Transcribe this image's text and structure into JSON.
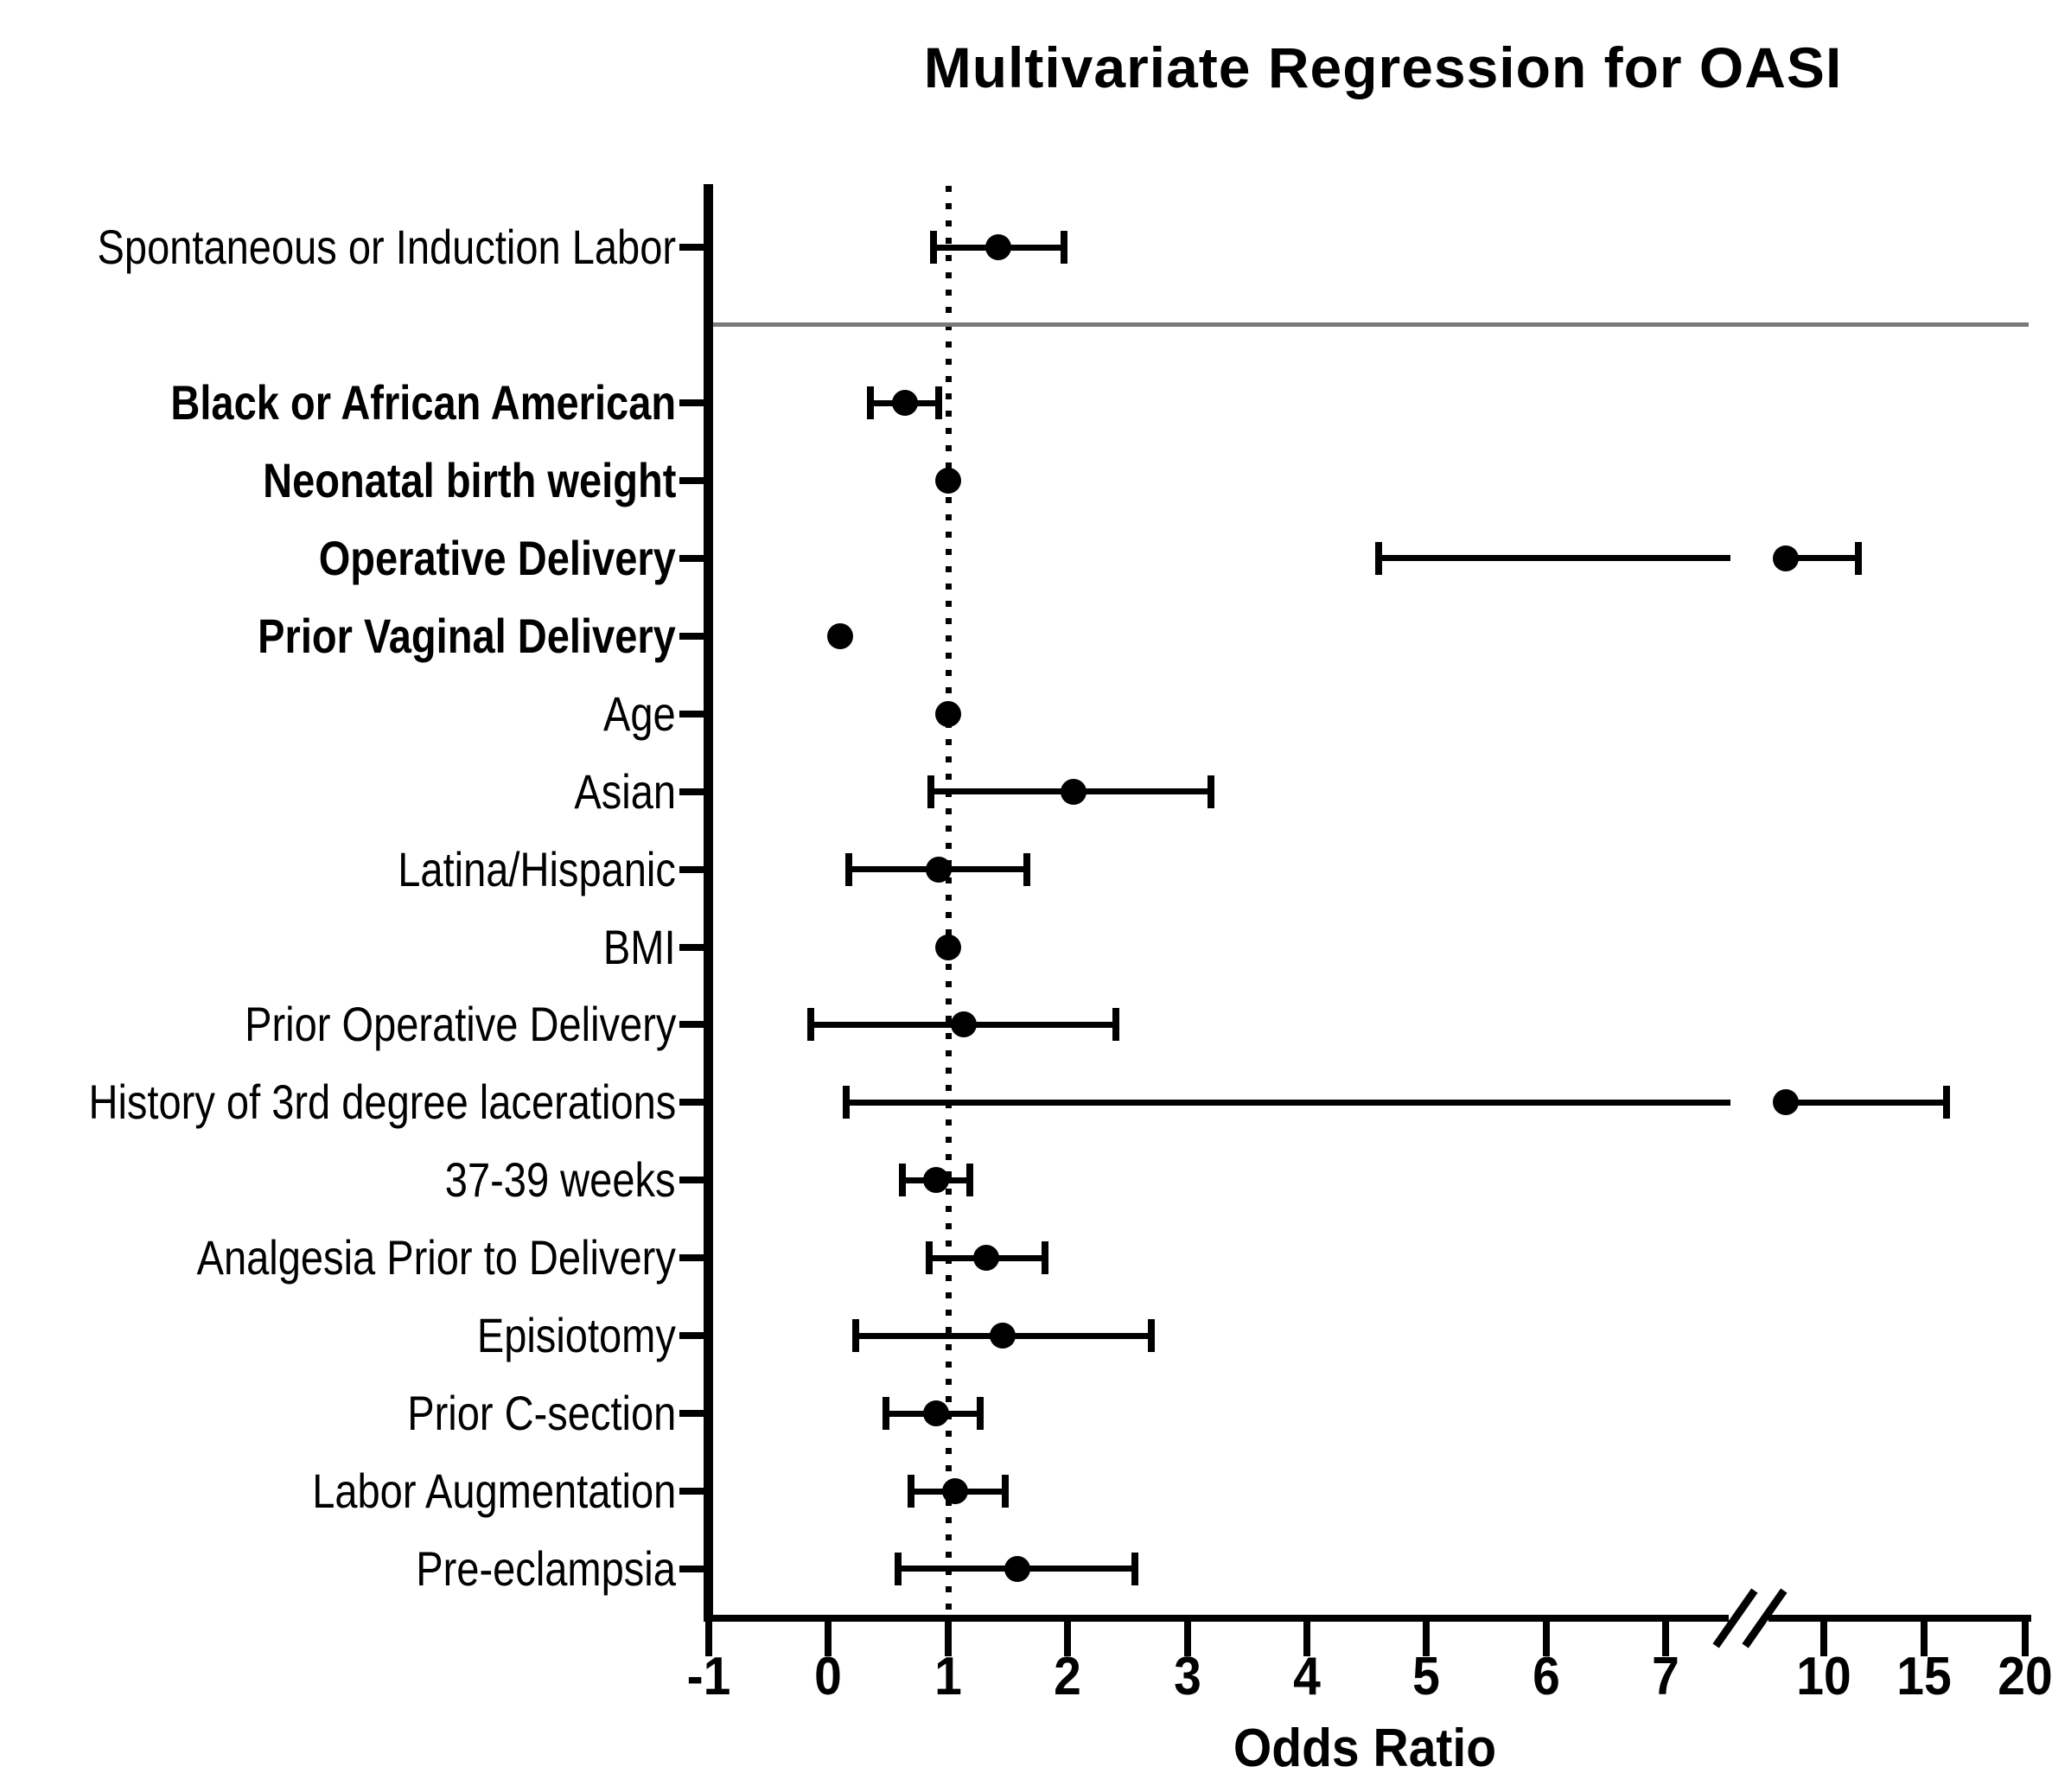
{
  "chart_data": {
    "type": "scatter",
    "variant": "forest-plot-odds-ratios",
    "title": "Multivariate Regression for OASI",
    "xlabel": "Odds Ratio",
    "x_axis": {
      "range": [
        -1,
        20
      ],
      "ticks_before_break": [
        -1,
        0,
        1,
        2,
        3,
        4,
        5,
        6,
        7
      ],
      "ticks_after_break": [
        10,
        15,
        20
      ],
      "axis_break_between": [
        7,
        10
      ],
      "reference_line_x": 1,
      "reference_line_style": "dotted"
    },
    "legend": null,
    "grid": false,
    "colors": {
      "marker": "#000000",
      "error_bar": "#000000",
      "separator_line": "#7a7a7a",
      "background": "#ffffff"
    },
    "rows": [
      {
        "label": "Spontaneous or Induction Labor",
        "bold": false,
        "or": 1.42,
        "ci_low": 0.88,
        "ci_high": 1.97,
        "ci_visible": true,
        "separator_below": true
      },
      {
        "label": "Black or African American",
        "bold": true,
        "or": 0.64,
        "ci_low": 0.35,
        "ci_high": 0.92,
        "ci_visible": true
      },
      {
        "label": "Neonatal birth weight",
        "bold": true,
        "or": 1.0,
        "ci_low": 1.0,
        "ci_high": 1.0,
        "ci_visible": false
      },
      {
        "label": "Operative Delivery",
        "bold": true,
        "or": 8.1,
        "ci_low": 4.6,
        "ci_high": 11.7,
        "ci_visible": true
      },
      {
        "label": "Prior Vaginal Delivery",
        "bold": true,
        "or": 0.1,
        "ci_low": 0.1,
        "ci_high": 0.1,
        "ci_visible": false
      },
      {
        "label": "Age",
        "bold": false,
        "or": 1.0,
        "ci_low": 1.0,
        "ci_high": 1.0,
        "ci_visible": false
      },
      {
        "label": "Asian",
        "bold": false,
        "or": 2.05,
        "ci_low": 0.86,
        "ci_high": 3.2,
        "ci_visible": true
      },
      {
        "label": "Latina/Hispanic",
        "bold": false,
        "or": 0.92,
        "ci_low": 0.17,
        "ci_high": 1.66,
        "ci_visible": true
      },
      {
        "label": "BMI",
        "bold": false,
        "or": 1.0,
        "ci_low": 1.0,
        "ci_high": 1.0,
        "ci_visible": false
      },
      {
        "label": "Prior Operative Delivery",
        "bold": false,
        "or": 1.13,
        "ci_low": -0.15,
        "ci_high": 2.4,
        "ci_visible": true
      },
      {
        "label": "History of 3rd degree lacerations",
        "bold": false,
        "or": 8.1,
        "ci_low": 0.15,
        "ci_high": 16.1,
        "ci_visible": true
      },
      {
        "label": "37-39 weeks",
        "bold": false,
        "or": 0.9,
        "ci_low": 0.62,
        "ci_high": 1.18,
        "ci_visible": true
      },
      {
        "label": "Analgesia Prior to Delivery",
        "bold": false,
        "or": 1.32,
        "ci_low": 0.84,
        "ci_high": 1.81,
        "ci_visible": true
      },
      {
        "label": "Episiotomy",
        "bold": false,
        "or": 1.46,
        "ci_low": 0.23,
        "ci_high": 2.7,
        "ci_visible": true
      },
      {
        "label": "Prior C-section",
        "bold": false,
        "or": 0.9,
        "ci_low": 0.48,
        "ci_high": 1.27,
        "ci_visible": true
      },
      {
        "label": "Labor Augmentation",
        "bold": false,
        "or": 1.06,
        "ci_low": 0.69,
        "ci_high": 1.48,
        "ci_visible": true
      },
      {
        "label": "Pre-eclampsia",
        "bold": false,
        "or": 1.58,
        "ci_low": 0.58,
        "ci_high": 2.56,
        "ci_visible": true
      }
    ]
  }
}
